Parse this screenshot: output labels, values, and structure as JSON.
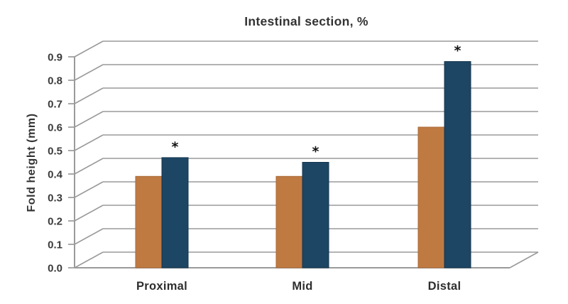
{
  "chart_data": {
    "type": "bar",
    "title": "Intestinal section, %",
    "ylabel": "Fold height (mm)",
    "xlabel": "",
    "categories": [
      "Proximal",
      "Mid",
      "Distal"
    ],
    "series": [
      {
        "name": "orange",
        "color": "#bf7a42",
        "border_color": "#a86a38",
        "values": [
          0.39,
          0.39,
          0.6
        ],
        "significant": [
          false,
          false,
          false
        ]
      },
      {
        "name": "dark-blue",
        "color": "#1d4564",
        "border_color": "#16374f",
        "values": [
          0.47,
          0.45,
          0.88
        ],
        "significant": [
          true,
          true,
          true
        ]
      }
    ],
    "significance_marker": "*",
    "y_ticks": [
      "0.0",
      "0.1",
      "0.2",
      "0.3",
      "0.4",
      "0.5",
      "0.6",
      "0.7",
      "0.8",
      "0.9"
    ],
    "ylim": [
      0,
      0.9
    ],
    "grid": true,
    "legend": false,
    "style": {
      "pseudo_3d": true,
      "grid_color": "#9a9a9a",
      "text_color": "#333333",
      "background": "#ffffff"
    }
  }
}
